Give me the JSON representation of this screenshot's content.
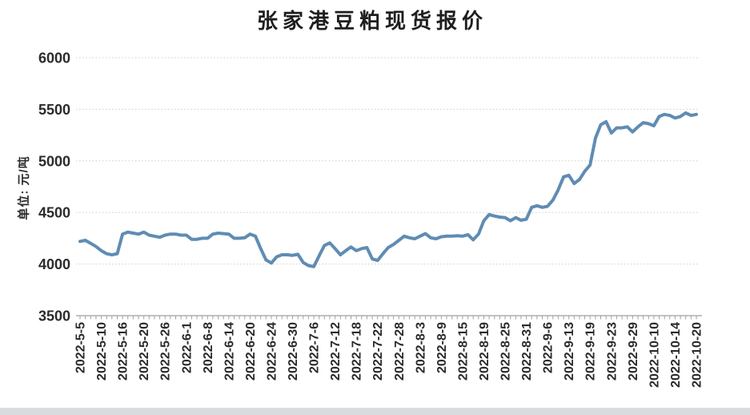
{
  "page": {
    "bottom_strip_color": "#d8dcdf"
  },
  "chart_data": {
    "type": "line",
    "title": "张家港豆粕现货报价",
    "xlabel": "",
    "ylabel": "单位: 元/吨",
    "ylim": [
      3500,
      6000
    ],
    "yticks": [
      6000,
      5500,
      5000,
      4500,
      4000,
      3500
    ],
    "grid": "horizontal dotted gridlines, solid bottom axis",
    "legend_position": "none",
    "line_color": "#5f8cb3",
    "axis_color": "#9aa0a6",
    "gridline_color": "#c9cdd1",
    "text_color": "#2b2b2b",
    "x_axis_note": "trading-day category axis, label shown every 4th point, labels rotated 90° counterclockwise",
    "tick_every_n_points": 4,
    "categories": [
      "2022-5-5",
      "2022-5-10",
      "2022-5-16",
      "2022-5-20",
      "2022-5-26",
      "2022-6-1",
      "2022-6-8",
      "2022-6-14",
      "2022-6-20",
      "2022-6-24",
      "2022-6-30",
      "2022-7-6",
      "2022-7-12",
      "2022-7-18",
      "2022-7-22",
      "2022-7-28",
      "2022-8-3",
      "2022-8-9",
      "2022-8-15",
      "2022-8-19",
      "2022-8-25",
      "2022-8-31",
      "2022-9-6",
      "2022-9-13",
      "2022-9-19",
      "2022-9-23",
      "2022-9-29",
      "2022-10-10",
      "2022-10-14",
      "2022-10-20"
    ],
    "values": [
      4220,
      4230,
      4200,
      4170,
      4130,
      4100,
      4090,
      4100,
      4290,
      4310,
      4300,
      4290,
      4310,
      4280,
      4270,
      4260,
      4280,
      4290,
      4290,
      4280,
      4280,
      4240,
      4240,
      4250,
      4250,
      4290,
      4300,
      4295,
      4290,
      4250,
      4250,
      4255,
      4290,
      4270,
      4150,
      4040,
      4010,
      4070,
      4090,
      4090,
      4085,
      4095,
      4015,
      3985,
      3975,
      4080,
      4180,
      4205,
      4150,
      4090,
      4130,
      4165,
      4130,
      4150,
      4160,
      4050,
      4035,
      4100,
      4160,
      4190,
      4230,
      4270,
      4255,
      4245,
      4270,
      4295,
      4255,
      4245,
      4265,
      4270,
      4270,
      4275,
      4270,
      4285,
      4235,
      4290,
      4420,
      4480,
      4465,
      4455,
      4450,
      4420,
      4450,
      4425,
      4435,
      4550,
      4565,
      4550,
      4560,
      4620,
      4720,
      4845,
      4860,
      4780,
      4820,
      4900,
      4960,
      5220,
      5350,
      5380,
      5270,
      5320,
      5320,
      5330,
      5280,
      5330,
      5370,
      5360,
      5340,
      5430,
      5450,
      5440,
      5415,
      5430,
      5465,
      5440,
      5450
    ]
  }
}
